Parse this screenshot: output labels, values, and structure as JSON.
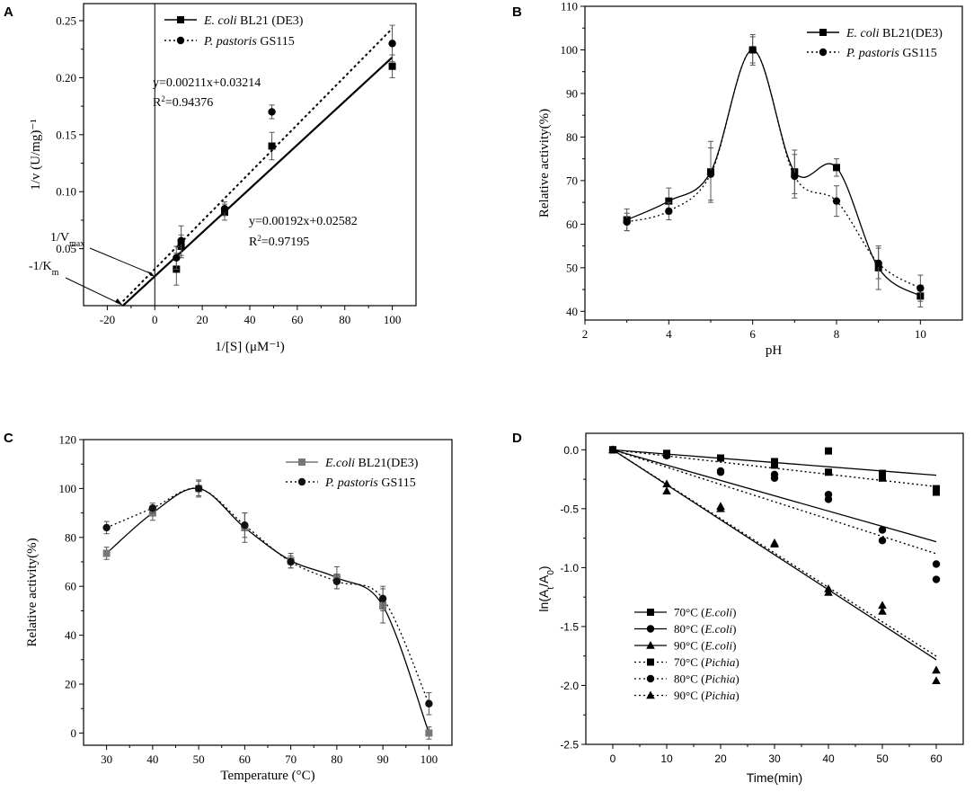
{
  "chart_data": [
    {
      "id": "A",
      "panel_label": "A",
      "type": "scatter",
      "title": "",
      "xlabel": "1/[S] (μM⁻¹)",
      "ylabel": "1/v (U/mg)⁻¹",
      "xlim": [
        -30,
        110
      ],
      "ylim": [
        0.0,
        0.265
      ],
      "xticks": [
        -20,
        0,
        20,
        40,
        60,
        80,
        100
      ],
      "yticks": [
        0.05,
        0.1,
        0.15,
        0.2,
        0.25
      ],
      "xtick_labels": [
        "-20",
        "0",
        "20",
        "40",
        "60",
        "80",
        "100"
      ],
      "ytick_labels": [
        "0.05",
        "0.10",
        "0.15",
        "0.20",
        "0.25"
      ],
      "legend_position": "top-right",
      "series": [
        {
          "name": "E. coli BL21 (DE3)",
          "name_italic": "E. coli",
          "name_rest": " BL21 (DE3)",
          "marker": "square",
          "line": "solid",
          "x": [
            9.1,
            11.1,
            29.4,
            49.3,
            100
          ],
          "y": [
            0.032,
            0.052,
            0.082,
            0.14,
            0.21
          ],
          "err": [
            0.014,
            0.01,
            0.007,
            0.012,
            0.01
          ],
          "fit": {
            "equation": "y=0.00192x+0.02582",
            "r2": "0.97195",
            "slope": 0.00192,
            "intercept": 0.02582,
            "x_range": [
              -13.45,
              100
            ]
          }
        },
        {
          "name": "P. pastoris GS115",
          "name_italic": "P. pastoris",
          "name_rest": " GS115",
          "marker": "circle",
          "line": "dotted",
          "x": [
            9.1,
            11.1,
            29.4,
            49.3,
            100
          ],
          "y": [
            0.042,
            0.057,
            0.085,
            0.17,
            0.23
          ],
          "err": [
            0.01,
            0.013,
            0.006,
            0.006,
            0.016
          ],
          "fit": {
            "equation": "y=0.00211x+0.03214",
            "r2": "0.94376",
            "slope": 0.00211,
            "intercept": 0.03214,
            "x_range": [
              -13.45,
              100
            ]
          }
        }
      ],
      "annotations": [
        {
          "label": "1/V",
          "sub": "max"
        },
        {
          "label": "-1/K",
          "sub": "m"
        }
      ]
    },
    {
      "id": "B",
      "panel_label": "B",
      "type": "line",
      "title": "",
      "xlabel": "pH",
      "ylabel": "Relative activity(%)",
      "xlim": [
        2,
        11
      ],
      "ylim": [
        38,
        110
      ],
      "xticks": [
        2,
        4,
        6,
        8,
        10
      ],
      "yticks": [
        40,
        50,
        60,
        70,
        80,
        90,
        100,
        110
      ],
      "xtick_labels": [
        "2",
        "4",
        "6",
        "8",
        "10"
      ],
      "ytick_labels": [
        "40",
        "50",
        "60",
        "70",
        "80",
        "90",
        "100",
        "110"
      ],
      "legend_position": "top-right",
      "series": [
        {
          "name": "E. coli BL21(DE3)",
          "name_italic": "E. coli",
          "name_rest": " BL21(DE3)",
          "marker": "square",
          "line": "solid",
          "x": [
            3,
            4,
            5,
            6,
            7,
            8,
            9,
            10
          ],
          "y": [
            61.0,
            65.3,
            72.0,
            100.0,
            72.0,
            73.0,
            50.0,
            43.5
          ],
          "err": [
            2.5,
            3.0,
            7.0,
            3.5,
            5.0,
            2.0,
            5.0,
            2.5
          ]
        },
        {
          "name": "P. pastoris GS115",
          "name_italic": "P. pastoris",
          "name_rest": " GS115",
          "marker": "circle",
          "line": "dotted",
          "x": [
            3,
            4,
            5,
            6,
            7,
            8,
            9,
            10
          ],
          "y": [
            60.5,
            63.0,
            71.5,
            100.0,
            71.0,
            65.3,
            51.0,
            45.3
          ],
          "err": [
            2.0,
            2.0,
            6.0,
            3.0,
            5.0,
            3.5,
            3.5,
            3.0
          ]
        }
      ]
    },
    {
      "id": "C",
      "panel_label": "C",
      "type": "line",
      "title": "",
      "xlabel": "Temperature (°C)",
      "ylabel": "Relative activity(%)",
      "xlim": [
        25,
        105
      ],
      "ylim": [
        -5,
        120
      ],
      "xticks": [
        30,
        40,
        50,
        60,
        70,
        80,
        90,
        100
      ],
      "yticks": [
        0,
        20,
        40,
        60,
        80,
        100,
        120
      ],
      "xtick_labels": [
        "30",
        "40",
        "50",
        "60",
        "70",
        "80",
        "90",
        "100"
      ],
      "ytick_labels": [
        "0",
        "20",
        "40",
        "60",
        "80",
        "100",
        "120"
      ],
      "legend_position": "top-right",
      "series": [
        {
          "name": "E.coli BL21(DE3)",
          "name_italic": "E.coli",
          "name_rest": " BL21(DE3)",
          "marker": "square",
          "line": "solid",
          "color": "#777777",
          "x": [
            30,
            40,
            50,
            60,
            70,
            80,
            90,
            100
          ],
          "y": [
            73.5,
            90.0,
            100.0,
            84.0,
            70.5,
            63.5,
            52.0,
            0.0
          ],
          "err": [
            2.5,
            3.0,
            3.5,
            6.0,
            3.0,
            4.5,
            7.0,
            2.5
          ]
        },
        {
          "name": "P. pastoris GS115",
          "name_italic": "P. pastoris",
          "name_rest": " GS115",
          "marker": "circle",
          "line": "dotted",
          "color": "#111111",
          "x": [
            30,
            40,
            50,
            60,
            70,
            80,
            90,
            100
          ],
          "y": [
            84.0,
            92.0,
            100.0,
            85.0,
            70.0,
            62.0,
            55.0,
            12.0
          ],
          "err": [
            2.5,
            2.0,
            3.0,
            5.0,
            2.5,
            3.0,
            5.0,
            4.5
          ]
        }
      ]
    },
    {
      "id": "D",
      "panel_label": "D",
      "type": "scatter",
      "title": "",
      "xlabel": "Time(min)",
      "ylabel": "ln(A",
      "ylabel_sub1": "t",
      "ylabel_mid": "/A",
      "ylabel_sub2": "0",
      "ylabel_end": ")",
      "xlim": [
        -5,
        65
      ],
      "ylim": [
        -2.5,
        0.14
      ],
      "xticks": [
        0,
        10,
        20,
        30,
        40,
        50,
        60
      ],
      "yticks": [
        0.0,
        -0.5,
        -1.0,
        -1.5,
        -2.0,
        -2.5
      ],
      "xtick_labels": [
        "0",
        "10",
        "20",
        "30",
        "40",
        "50",
        "60"
      ],
      "ytick_labels": [
        "0.0",
        "-0.5",
        "-1.0",
        "-1.5",
        "-2.0",
        "-2.5"
      ],
      "legend_position": "bottom-left",
      "series": [
        {
          "name": "70°C (E.coli)",
          "temp": "70°C",
          "org": "E.coli",
          "marker": "square",
          "line": "solid",
          "x": [
            0,
            10,
            20,
            30,
            40,
            50,
            60
          ],
          "y": [
            0,
            -0.03,
            -0.07,
            -0.1,
            -0.01,
            -0.2,
            -0.33
          ],
          "fit_slope": -0.0036
        },
        {
          "name": "80°C (E.coli)",
          "temp": "80°C",
          "org": "E.coli",
          "marker": "circle",
          "line": "solid",
          "x": [
            0,
            10,
            20,
            30,
            40,
            50,
            60
          ],
          "y": [
            0,
            -0.05,
            -0.18,
            -0.21,
            -0.38,
            -0.68,
            -0.97
          ],
          "fit_slope": -0.013
        },
        {
          "name": "90°C (E.coli)",
          "temp": "90°C",
          "org": "E.coli",
          "marker": "triangle",
          "line": "solid",
          "x": [
            0,
            10,
            20,
            30,
            40,
            50,
            60
          ],
          "y": [
            0,
            -0.29,
            -0.48,
            -0.79,
            -1.18,
            -1.32,
            -1.87
          ],
          "fit_slope": -0.0297
        },
        {
          "name": "70°C (Pichia)",
          "temp": "70°C",
          "org": "Pichia",
          "marker": "square",
          "line": "dotted",
          "x": [
            0,
            10,
            20,
            30,
            40,
            50,
            60
          ],
          "y": [
            0,
            -0.04,
            -0.07,
            -0.13,
            -0.19,
            -0.24,
            -0.36
          ],
          "fit_slope": -0.0052
        },
        {
          "name": "80°C (Pichia)",
          "temp": "80°C",
          "org": "Pichia",
          "marker": "circle",
          "line": "dotted",
          "x": [
            0,
            10,
            20,
            30,
            40,
            50,
            60
          ],
          "y": [
            0,
            -0.04,
            -0.19,
            -0.24,
            -0.42,
            -0.77,
            -1.1
          ],
          "fit_slope": -0.0147
        },
        {
          "name": "90°C (Pichia)",
          "temp": "90°C",
          "org": "Pichia",
          "marker": "triangle",
          "line": "dotted",
          "x": [
            0,
            10,
            20,
            30,
            40,
            50,
            60
          ],
          "y": [
            0,
            -0.35,
            -0.5,
            -0.8,
            -1.21,
            -1.37,
            -1.96
          ],
          "fit_slope": -0.0292
        }
      ]
    }
  ]
}
